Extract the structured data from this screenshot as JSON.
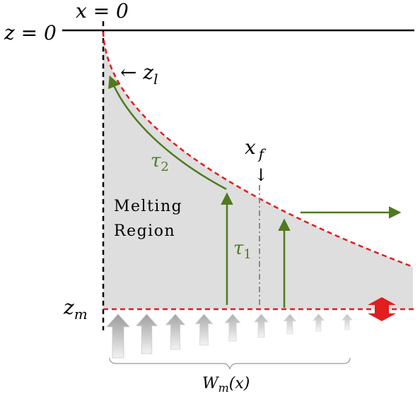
{
  "labels": {
    "x0": "x = 0",
    "z0": "z = 0",
    "zl": "← z",
    "zl_sub": "l",
    "xf": "x",
    "xf_sub": "f",
    "xf_arrow": "↓",
    "tau2": "τ",
    "tau2_sub": "2",
    "tau1": "τ",
    "tau1_sub": "1",
    "region_line1": "Melting",
    "region_line2": "Region",
    "zm": "z",
    "zm_sub": "m",
    "wm": "W",
    "wm_sub": "m",
    "wm_arg": "(x)"
  },
  "colors": {
    "boundary": "#e11d1d",
    "flow": "#4f7a1f",
    "region_fill": "#dedede",
    "upwelling": "#b8b8b8",
    "baseline": "#000000"
  },
  "upwelling_strengths": [
    1.0,
    0.88,
    0.76,
    0.64,
    0.52,
    0.42,
    0.32,
    0.24,
    0.2
  ]
}
